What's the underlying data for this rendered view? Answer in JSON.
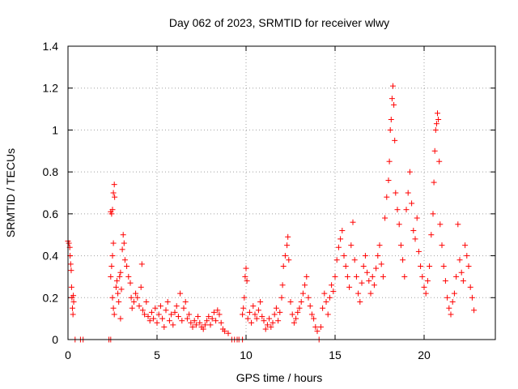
{
  "chart_data": {
    "type": "scatter",
    "title": "Day 062 of 2023, SRMTID for receiver wlwy",
    "xlabel": "GPS time / hours",
    "ylabel": "SRMTID / TECUs",
    "xlim": [
      0,
      24
    ],
    "ylim": [
      0,
      1.4
    ],
    "xticks": [
      0,
      5,
      10,
      15,
      20
    ],
    "xtick_labels": [
      "0",
      "5",
      "10",
      "15",
      "20"
    ],
    "yticks": [
      0,
      0.2,
      0.4,
      0.6,
      0.8,
      1.0,
      1.2,
      1.4
    ],
    "ytick_labels": [
      "0",
      "0.2",
      "0.4",
      "0.6",
      "0.8",
      "1",
      "1.2",
      "1.4"
    ],
    "grid": true,
    "marker": "+",
    "color": "#ff0000",
    "series": [
      {
        "name": "SRMTID",
        "points": [
          [
            0.0,
            0.47
          ],
          [
            0.05,
            0.46
          ],
          [
            0.1,
            0.44
          ],
          [
            0.12,
            0.4
          ],
          [
            0.15,
            0.36
          ],
          [
            0.18,
            0.33
          ],
          [
            0.2,
            0.25
          ],
          [
            0.22,
            0.2
          ],
          [
            0.25,
            0.15
          ],
          [
            0.28,
            0.12
          ],
          [
            0.3,
            0.21
          ],
          [
            0.32,
            0.18
          ],
          [
            0.4,
            0.0
          ],
          [
            0.7,
            0.0
          ],
          [
            0.85,
            0.0
          ],
          [
            2.3,
            0.0
          ],
          [
            2.4,
            0.0
          ],
          [
            2.4,
            0.61
          ],
          [
            2.45,
            0.6
          ],
          [
            2.5,
            0.62
          ],
          [
            2.55,
            0.7
          ],
          [
            2.6,
            0.74
          ],
          [
            2.62,
            0.68
          ],
          [
            2.55,
            0.46
          ],
          [
            2.5,
            0.4
          ],
          [
            2.45,
            0.35
          ],
          [
            2.4,
            0.3
          ],
          [
            2.5,
            0.2
          ],
          [
            2.55,
            0.15
          ],
          [
            2.6,
            0.12
          ],
          [
            2.7,
            0.25
          ],
          [
            2.75,
            0.28
          ],
          [
            2.8,
            0.22
          ],
          [
            2.85,
            0.18
          ],
          [
            2.9,
            0.3
          ],
          [
            2.95,
            0.32
          ],
          [
            3.0,
            0.24
          ],
          [
            3.05,
            0.43
          ],
          [
            3.1,
            0.5
          ],
          [
            3.15,
            0.46
          ],
          [
            3.2,
            0.38
          ],
          [
            3.3,
            0.35
          ],
          [
            3.4,
            0.3
          ],
          [
            3.5,
            0.27
          ],
          [
            3.55,
            0.2
          ],
          [
            3.6,
            0.15
          ],
          [
            2.95,
            0.1
          ],
          [
            3.7,
            0.18
          ],
          [
            3.8,
            0.22
          ],
          [
            3.9,
            0.2
          ],
          [
            4.0,
            0.16
          ],
          [
            4.1,
            0.25
          ],
          [
            4.15,
            0.36
          ],
          [
            4.2,
            0.14
          ],
          [
            4.3,
            0.12
          ],
          [
            4.4,
            0.18
          ],
          [
            4.5,
            0.11
          ],
          [
            4.6,
            0.09
          ],
          [
            4.7,
            0.13
          ],
          [
            4.8,
            0.1
          ],
          [
            4.9,
            0.15
          ],
          [
            5.0,
            0.08
          ],
          [
            5.1,
            0.12
          ],
          [
            5.2,
            0.16
          ],
          [
            5.3,
            0.1
          ],
          [
            5.4,
            0.06
          ],
          [
            5.5,
            0.14
          ],
          [
            5.6,
            0.18
          ],
          [
            5.7,
            0.09
          ],
          [
            5.8,
            0.12
          ],
          [
            5.9,
            0.07
          ],
          [
            6.0,
            0.13
          ],
          [
            6.1,
            0.16
          ],
          [
            6.2,
            0.11
          ],
          [
            6.3,
            0.22
          ],
          [
            6.4,
            0.09
          ],
          [
            6.5,
            0.15
          ],
          [
            6.6,
            0.18
          ],
          [
            6.7,
            0.1
          ],
          [
            6.8,
            0.12
          ],
          [
            6.9,
            0.08
          ],
          [
            7.0,
            0.06
          ],
          [
            7.1,
            0.09
          ],
          [
            7.2,
            0.07
          ],
          [
            7.3,
            0.11
          ],
          [
            7.4,
            0.08
          ],
          [
            7.5,
            0.06
          ],
          [
            7.6,
            0.05
          ],
          [
            7.7,
            0.07
          ],
          [
            7.8,
            0.09
          ],
          [
            7.9,
            0.11
          ],
          [
            8.0,
            0.07
          ],
          [
            8.1,
            0.1
          ],
          [
            8.2,
            0.13
          ],
          [
            8.3,
            0.09
          ],
          [
            8.4,
            0.14
          ],
          [
            8.5,
            0.12
          ],
          [
            8.6,
            0.08
          ],
          [
            8.7,
            0.05
          ],
          [
            8.8,
            0.04
          ],
          [
            9.0,
            0.03
          ],
          [
            9.2,
            0.0
          ],
          [
            9.35,
            0.0
          ],
          [
            9.5,
            0.0
          ],
          [
            9.6,
            0.0
          ],
          [
            9.8,
            0.0
          ],
          [
            9.8,
            0.12
          ],
          [
            9.85,
            0.15
          ],
          [
            9.9,
            0.2
          ],
          [
            9.95,
            0.3
          ],
          [
            10.0,
            0.34
          ],
          [
            10.05,
            0.28
          ],
          [
            10.1,
            0.1
          ],
          [
            10.2,
            0.13
          ],
          [
            10.3,
            0.08
          ],
          [
            10.4,
            0.16
          ],
          [
            10.5,
            0.12
          ],
          [
            10.6,
            0.1
          ],
          [
            10.7,
            0.14
          ],
          [
            10.8,
            0.18
          ],
          [
            10.9,
            0.11
          ],
          [
            11.0,
            0.09
          ],
          [
            11.1,
            0.05
          ],
          [
            11.2,
            0.07
          ],
          [
            11.3,
            0.1
          ],
          [
            11.4,
            0.06
          ],
          [
            11.5,
            0.08
          ],
          [
            11.6,
            0.12
          ],
          [
            11.7,
            0.15
          ],
          [
            11.8,
            0.09
          ],
          [
            11.9,
            0.13
          ],
          [
            12.0,
            0.2
          ],
          [
            12.05,
            0.26
          ],
          [
            12.1,
            0.35
          ],
          [
            12.2,
            0.4
          ],
          [
            12.3,
            0.45
          ],
          [
            12.35,
            0.49
          ],
          [
            12.4,
            0.38
          ],
          [
            12.5,
            0.18
          ],
          [
            12.6,
            0.12
          ],
          [
            12.7,
            0.08
          ],
          [
            12.8,
            0.1
          ],
          [
            12.9,
            0.13
          ],
          [
            13.0,
            0.15
          ],
          [
            13.1,
            0.18
          ],
          [
            13.2,
            0.22
          ],
          [
            13.3,
            0.26
          ],
          [
            13.4,
            0.3
          ],
          [
            13.5,
            0.2
          ],
          [
            13.6,
            0.16
          ],
          [
            13.7,
            0.12
          ],
          [
            13.8,
            0.1
          ],
          [
            13.9,
            0.06
          ],
          [
            14.0,
            0.04
          ],
          [
            14.1,
            0.0
          ],
          [
            14.2,
            0.06
          ],
          [
            14.3,
            0.15
          ],
          [
            14.4,
            0.22
          ],
          [
            14.5,
            0.18
          ],
          [
            14.6,
            0.12
          ],
          [
            14.7,
            0.2
          ],
          [
            14.8,
            0.26
          ],
          [
            14.9,
            0.23
          ],
          [
            15.0,
            0.3
          ],
          [
            15.1,
            0.38
          ],
          [
            15.2,
            0.44
          ],
          [
            15.3,
            0.48
          ],
          [
            15.4,
            0.52
          ],
          [
            15.5,
            0.4
          ],
          [
            15.6,
            0.35
          ],
          [
            15.7,
            0.3
          ],
          [
            15.8,
            0.25
          ],
          [
            15.9,
            0.45
          ],
          [
            16.0,
            0.56
          ],
          [
            16.1,
            0.38
          ],
          [
            16.2,
            0.3
          ],
          [
            16.3,
            0.22
          ],
          [
            16.4,
            0.18
          ],
          [
            16.5,
            0.27
          ],
          [
            16.6,
            0.35
          ],
          [
            16.7,
            0.4
          ],
          [
            16.8,
            0.32
          ],
          [
            16.9,
            0.28
          ],
          [
            17.0,
            0.22
          ],
          [
            17.1,
            0.3
          ],
          [
            17.2,
            0.26
          ],
          [
            17.3,
            0.34
          ],
          [
            17.4,
            0.4
          ],
          [
            17.5,
            0.45
          ],
          [
            17.6,
            0.36
          ],
          [
            17.7,
            0.3
          ],
          [
            17.8,
            0.58
          ],
          [
            17.9,
            0.68
          ],
          [
            18.0,
            0.76
          ],
          [
            18.05,
            0.85
          ],
          [
            18.1,
            1.0
          ],
          [
            18.15,
            1.05
          ],
          [
            18.2,
            1.15
          ],
          [
            18.25,
            1.21
          ],
          [
            18.3,
            1.12
          ],
          [
            18.35,
            0.95
          ],
          [
            18.4,
            0.7
          ],
          [
            18.5,
            0.62
          ],
          [
            18.6,
            0.55
          ],
          [
            18.7,
            0.45
          ],
          [
            18.8,
            0.38
          ],
          [
            18.9,
            0.3
          ],
          [
            19.0,
            0.62
          ],
          [
            19.1,
            0.7
          ],
          [
            19.2,
            0.8
          ],
          [
            19.3,
            0.65
          ],
          [
            19.4,
            0.52
          ],
          [
            19.5,
            0.48
          ],
          [
            19.6,
            0.58
          ],
          [
            19.7,
            0.42
          ],
          [
            19.8,
            0.35
          ],
          [
            19.9,
            0.3
          ],
          [
            20.0,
            0.25
          ],
          [
            20.1,
            0.22
          ],
          [
            20.2,
            0.28
          ],
          [
            20.3,
            0.35
          ],
          [
            20.4,
            0.5
          ],
          [
            20.5,
            0.6
          ],
          [
            20.55,
            0.75
          ],
          [
            20.6,
            0.9
          ],
          [
            20.65,
            1.0
          ],
          [
            20.7,
            1.03
          ],
          [
            20.75,
            1.08
          ],
          [
            20.8,
            1.05
          ],
          [
            20.85,
            0.85
          ],
          [
            20.9,
            0.55
          ],
          [
            21.0,
            0.45
          ],
          [
            21.1,
            0.35
          ],
          [
            21.2,
            0.28
          ],
          [
            21.3,
            0.2
          ],
          [
            21.4,
            0.15
          ],
          [
            21.5,
            0.12
          ],
          [
            21.6,
            0.18
          ],
          [
            21.7,
            0.22
          ],
          [
            21.8,
            0.3
          ],
          [
            21.9,
            0.55
          ],
          [
            22.0,
            0.38
          ],
          [
            22.1,
            0.32
          ],
          [
            22.2,
            0.28
          ],
          [
            22.3,
            0.45
          ],
          [
            22.4,
            0.4
          ],
          [
            22.5,
            0.35
          ],
          [
            22.6,
            0.25
          ],
          [
            22.7,
            0.2
          ],
          [
            22.8,
            0.14
          ]
        ]
      }
    ]
  }
}
